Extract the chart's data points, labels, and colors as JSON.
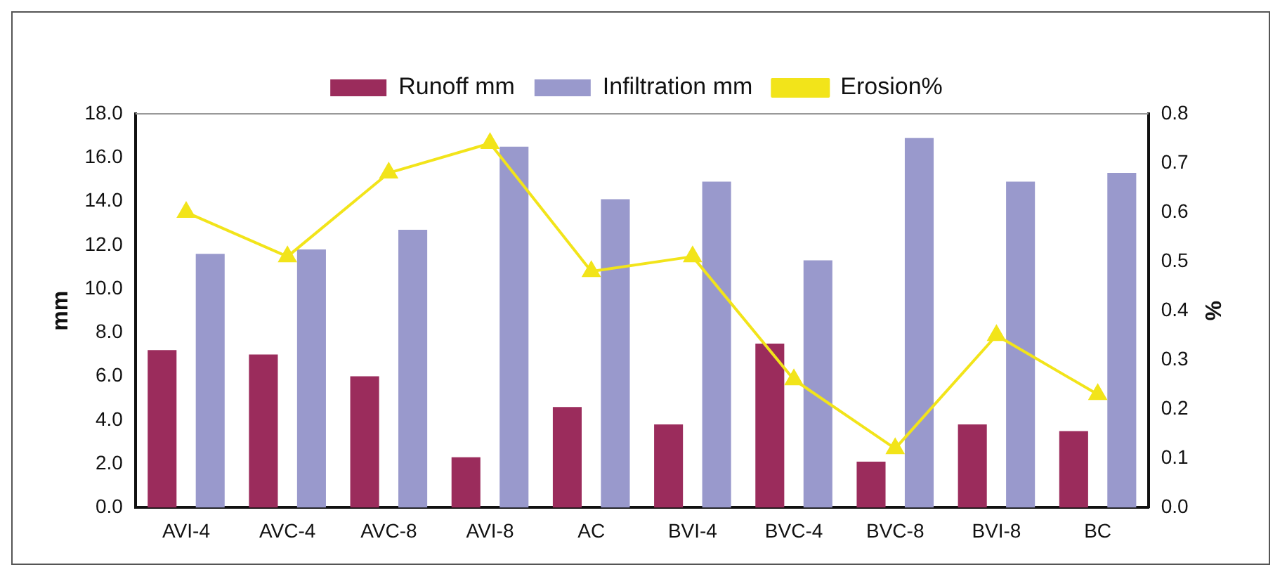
{
  "chart_data": {
    "type": "bar",
    "categories": [
      "AVI-4",
      "AVC-4",
      "AVC-8",
      "AVI-8",
      "AC",
      "BVI-4",
      "BVC-4",
      "BVC-8",
      "BVI-8",
      "BC"
    ],
    "ylabel": "mm",
    "y2label": "%",
    "ylim": [
      0,
      18
    ],
    "yticks": [
      {
        "value": 0,
        "label": "0.0"
      },
      {
        "value": 2,
        "label": "2.0"
      },
      {
        "value": 4,
        "label": "4.0"
      },
      {
        "value": 6,
        "label": "6.0"
      },
      {
        "value": 8,
        "label": "8.0"
      },
      {
        "value": 10,
        "label": "10.0"
      },
      {
        "value": 12,
        "label": "12.0"
      },
      {
        "value": 14,
        "label": "14.0"
      },
      {
        "value": 16,
        "label": "16.0"
      },
      {
        "value": 18,
        "label": "18.0"
      }
    ],
    "y2lim": [
      0,
      0.8
    ],
    "y2ticks": [
      {
        "value": 0,
        "label": "0.0"
      },
      0.1,
      0.2,
      0.3,
      0.4,
      0.5,
      0.6,
      0.7,
      0.8
    ],
    "grid": false,
    "legend": "top",
    "marker": "triangle",
    "series": [
      {
        "name": "Runoff mm",
        "color": "#9b2c5c",
        "values": [
          7.2,
          7.0,
          6.0,
          2.3,
          4.6,
          3.8,
          7.5,
          2.1,
          3.8,
          3.5
        ]
      },
      {
        "name": "Infiltration mm",
        "color": "#9999cc",
        "values": [
          11.6,
          11.8,
          12.7,
          16.5,
          14.1,
          14.9,
          11.3,
          16.9,
          14.9,
          15.3
        ]
      },
      {
        "name": "Erosion%",
        "type": "line",
        "axis": "y2",
        "color": "#f2e41a",
        "values": [
          0.6,
          0.51,
          0.68,
          0.74,
          0.48,
          0.51,
          0.26,
          0.12,
          0.35,
          0.23
        ]
      }
    ]
  }
}
